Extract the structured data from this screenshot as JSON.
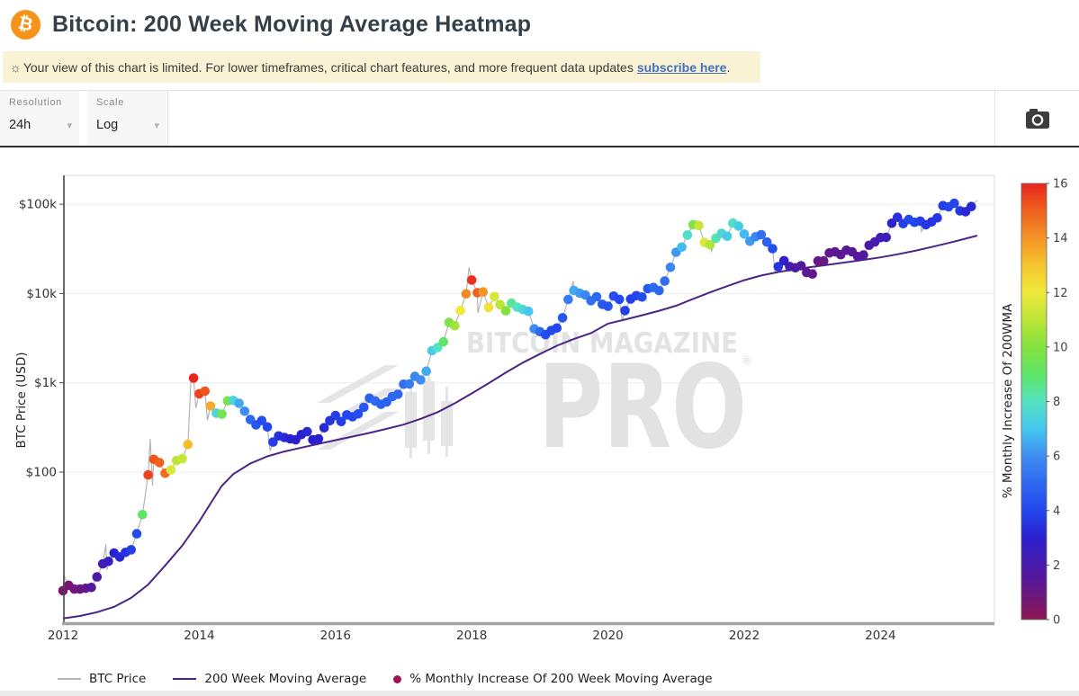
{
  "header": {
    "logo_glyph": "₿",
    "title": "Bitcoin: 200 Week Moving Average Heatmap"
  },
  "banner": {
    "icon": "☼",
    "text": "Your view of this chart is limited. For lower timeframes, critical chart features, and more frequent data updates",
    "link_text": "subscribe here",
    "suffix": "."
  },
  "toolbar": {
    "resolution_label": "Resolution",
    "resolution_value": "24h",
    "scale_label": "Scale",
    "scale_value": "Log",
    "camera_icon": "camera-icon"
  },
  "watermark": {
    "line1": "BITCOIN MAGAZINE",
    "line2": "PRO",
    "reg": "®"
  },
  "legend": [
    {
      "label": "BTC Price",
      "swatch": "gray-line",
      "color": "#b5b5b5"
    },
    {
      "label": "200 Week Moving Average",
      "swatch": "purple-line",
      "color": "#4b2583"
    },
    {
      "label": "% Monthly Increase Of 200 Week Moving Average",
      "swatch": "maroon-dot",
      "color": "#9e1258"
    }
  ],
  "chart_data": {
    "type": "scatter",
    "title": "",
    "xlabel": "",
    "ylabel": "BTC Price (USD)",
    "x_axis": {
      "ticks": [
        2012,
        2014,
        2016,
        2018,
        2020,
        2022,
        2024
      ],
      "range": [
        2012,
        2025.6
      ]
    },
    "y_axis": {
      "scale": "log",
      "ticks": [
        {
          "value": 100,
          "label": "$100"
        },
        {
          "value": 1000,
          "label": "$1k"
        },
        {
          "value": 10000,
          "label": "$10k"
        },
        {
          "value": 100000,
          "label": "$100k"
        }
      ],
      "range": [
        2.1,
        200000
      ]
    },
    "colorbar": {
      "label": "% Monthly Increase Of 200WMA",
      "min": 0,
      "max": 16,
      "ticks": [
        0,
        2,
        4,
        6,
        8,
        10,
        12,
        14,
        16
      ],
      "stops": [
        [
          0,
          "#8e1652"
        ],
        [
          1.5,
          "#56189b"
        ],
        [
          3,
          "#2b20cf"
        ],
        [
          4,
          "#2346ee"
        ],
        [
          5,
          "#2d68f0"
        ],
        [
          6,
          "#3f8df2"
        ],
        [
          7,
          "#45c7ef"
        ],
        [
          8,
          "#55e2c0"
        ],
        [
          9,
          "#5fe566"
        ],
        [
          10,
          "#84e23f"
        ],
        [
          11,
          "#bce637"
        ],
        [
          12,
          "#f0e93a"
        ],
        [
          13,
          "#f6c52f"
        ],
        [
          14,
          "#f49326"
        ],
        [
          15,
          "#ef611f"
        ],
        [
          16,
          "#e8251c"
        ]
      ]
    },
    "series": {
      "btc_price": {
        "name": "BTC Price",
        "color": "#b5b5b5",
        "monthly_close_start": 2012.0,
        "monthly_step_years": 0.0833333,
        "monthly_closes": [
          4.7,
          5.4,
          4.9,
          4.9,
          5.0,
          5.1,
          6.7,
          9.4,
          10.0,
          12.4,
          11.2,
          12.6,
          13.5,
          20.4,
          33.4,
          93,
          139,
          128,
          97,
          106,
          135,
          141,
          204,
          1130,
          754,
          806,
          550,
          458,
          446,
          628,
          635,
          589,
          481,
          387,
          338,
          378,
          320,
          217,
          254,
          244,
          236,
          230,
          263,
          284,
          230,
          236,
          314,
          377,
          430,
          368,
          437,
          416,
          448,
          531,
          673,
          624,
          575,
          610,
          700,
          745,
          964,
          970,
          1180,
          1080,
          1350,
          2290,
          2480,
          2875,
          4735,
          4360,
          6468,
          9916,
          14156,
          10221,
          10397,
          6973,
          9240,
          7494,
          6404,
          7780,
          7037,
          6625,
          6317,
          4017,
          3742,
          3457,
          3854,
          4105,
          5350,
          8574,
          10817,
          10085,
          9630,
          8308,
          9199,
          7569,
          7193,
          9350,
          8599,
          6438,
          8658,
          9461,
          9137,
          11323,
          11680,
          10784,
          13781,
          19625,
          28993,
          33114,
          45137,
          58918,
          57750,
          37332,
          35040,
          41626,
          47166,
          43790,
          61318,
          56907,
          46306,
          38483,
          43193,
          45538,
          37630,
          31792,
          19985,
          23336,
          20049,
          19431,
          20495,
          17168,
          16547,
          23139,
          23147,
          28478,
          29268,
          27219,
          30477,
          29230,
          25931,
          26967,
          34667,
          37718,
          42265,
          42580,
          61198,
          71333,
          60636,
          67491,
          62678,
          64619,
          58969,
          63329,
          70215,
          96449,
          93429,
          102405,
          84349,
          82548,
          94207
        ],
        "extra_points": [
          [
            2012.01,
            7.1
          ],
          [
            2012.63,
            15.5
          ],
          [
            2012.645,
            8.0
          ],
          [
            2013.28,
            235
          ],
          [
            2013.315,
            70
          ],
          [
            2013.88,
            1150
          ],
          [
            2013.95,
            522
          ],
          [
            2014.12,
            380
          ],
          [
            2015.04,
            172
          ],
          [
            2017.96,
            19600
          ],
          [
            2018.09,
            6050
          ],
          [
            2019.49,
            13800
          ],
          [
            2020.21,
            4900
          ],
          [
            2021.3,
            64800
          ],
          [
            2021.52,
            29800
          ],
          [
            2021.85,
            69000
          ],
          [
            2022.45,
            17700
          ],
          [
            2024.2,
            73700
          ],
          [
            2024.6,
            49500
          ],
          [
            2025.05,
            109000
          ],
          [
            2025.27,
            76600
          ],
          [
            2025.42,
            111000
          ]
        ]
      },
      "wma_200w": {
        "name": "200 Week Moving Average",
        "color": "#4b2583",
        "points": [
          [
            2012.0,
            2.3
          ],
          [
            2012.25,
            2.45
          ],
          [
            2012.5,
            2.7
          ],
          [
            2012.75,
            3.1
          ],
          [
            2013.0,
            3.9
          ],
          [
            2013.25,
            5.5
          ],
          [
            2013.5,
            9
          ],
          [
            2013.75,
            15
          ],
          [
            2014.0,
            28
          ],
          [
            2014.17,
            45
          ],
          [
            2014.33,
            70
          ],
          [
            2014.5,
            95
          ],
          [
            2014.75,
            125
          ],
          [
            2015.0,
            150
          ],
          [
            2015.25,
            170
          ],
          [
            2015.5,
            188
          ],
          [
            2015.75,
            207
          ],
          [
            2016.0,
            228
          ],
          [
            2016.25,
            250
          ],
          [
            2016.5,
            275
          ],
          [
            2016.75,
            305
          ],
          [
            2017.0,
            340
          ],
          [
            2017.25,
            395
          ],
          [
            2017.5,
            470
          ],
          [
            2017.75,
            590
          ],
          [
            2018.0,
            760
          ],
          [
            2018.25,
            990
          ],
          [
            2018.5,
            1300
          ],
          [
            2018.75,
            1680
          ],
          [
            2019.0,
            2100
          ],
          [
            2019.25,
            2600
          ],
          [
            2019.5,
            3100
          ],
          [
            2019.75,
            3600
          ],
          [
            2020.0,
            4600
          ],
          [
            2020.25,
            5100
          ],
          [
            2020.5,
            5700
          ],
          [
            2020.75,
            6400
          ],
          [
            2021.0,
            7300
          ],
          [
            2021.25,
            8700
          ],
          [
            2021.5,
            10300
          ],
          [
            2021.75,
            12100
          ],
          [
            2022.0,
            14100
          ],
          [
            2022.25,
            15900
          ],
          [
            2022.5,
            17400
          ],
          [
            2022.75,
            18700
          ],
          [
            2023.0,
            19900
          ],
          [
            2023.25,
            21100
          ],
          [
            2023.5,
            22400
          ],
          [
            2023.75,
            23800
          ],
          [
            2024.0,
            25400
          ],
          [
            2024.25,
            27500
          ],
          [
            2024.5,
            30000
          ],
          [
            2024.75,
            33200
          ],
          [
            2025.0,
            36800
          ],
          [
            2025.2,
            40200
          ],
          [
            2025.42,
            44500
          ]
        ]
      },
      "heat_pct_monthly_increase": {
        "name": "% Monthly Increase Of 200 Week Moving Average",
        "values": [
          0.5,
          0.6,
          0.8,
          1.0,
          1.2,
          1.5,
          1.8,
          2.2,
          2.6,
          3.0,
          3.2,
          3.5,
          3.8,
          4.2,
          9.0,
          15.5,
          15.2,
          15.0,
          14.8,
          11.5,
          11.0,
          11.2,
          13.2,
          16.0,
          15.5,
          15.2,
          13.5,
          7.5,
          9.5,
          9.8,
          7.5,
          6.5,
          6.0,
          5.0,
          4.5,
          4.2,
          4.0,
          3.8,
          3.5,
          3.2,
          3.0,
          3.0,
          3.0,
          3.2,
          3.0,
          3.0,
          3.2,
          3.5,
          3.8,
          3.8,
          4.0,
          4.0,
          4.2,
          4.5,
          4.8,
          5.0,
          4.8,
          4.8,
          5.0,
          5.0,
          5.2,
          5.5,
          5.8,
          6.0,
          6.5,
          7.2,
          8.0,
          9.0,
          9.8,
          10.5,
          12.0,
          14.2,
          15.8,
          15.0,
          14.0,
          12.2,
          11.5,
          11.0,
          10.0,
          8.5,
          8.0,
          7.5,
          7.0,
          6.0,
          5.0,
          4.2,
          4.0,
          4.0,
          4.5,
          5.5,
          6.5,
          6.2,
          5.8,
          5.2,
          5.0,
          4.6,
          4.4,
          4.2,
          4.0,
          3.8,
          3.8,
          4.0,
          4.2,
          4.5,
          5.0,
          5.0,
          5.2,
          5.8,
          6.2,
          6.8,
          7.8,
          9.8,
          11.2,
          11.5,
          10.8,
          8.2,
          7.5,
          7.2,
          7.8,
          7.2,
          6.8,
          6.2,
          5.8,
          5.2,
          4.8,
          4.2,
          3.5,
          2.8,
          2.2,
          1.8,
          1.6,
          1.4,
          1.2,
          1.0,
          1.0,
          1.2,
          1.4,
          1.4,
          1.4,
          1.5,
          1.5,
          1.6,
          1.8,
          2.0,
          2.2,
          2.4,
          2.8,
          3.4,
          3.8,
          4.0,
          4.0,
          3.8,
          3.6,
          3.5,
          3.6,
          3.8,
          4.0,
          4.0,
          3.6,
          3.2,
          3.2
        ]
      }
    }
  }
}
